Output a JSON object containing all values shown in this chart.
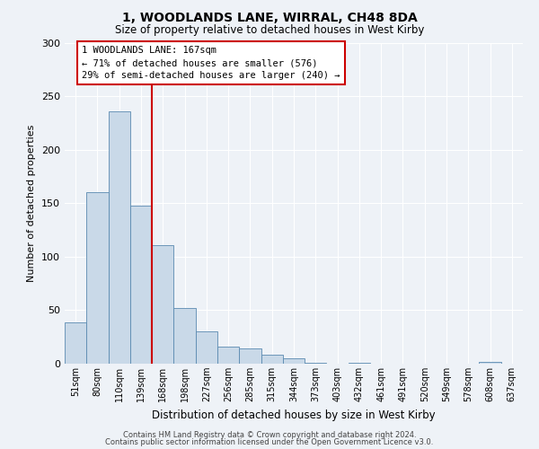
{
  "title": "1, WOODLANDS LANE, WIRRAL, CH48 8DA",
  "subtitle": "Size of property relative to detached houses in West Kirby",
  "xlabel": "Distribution of detached houses by size in West Kirby",
  "ylabel": "Number of detached properties",
  "bar_labels": [
    "51sqm",
    "80sqm",
    "110sqm",
    "139sqm",
    "168sqm",
    "198sqm",
    "227sqm",
    "256sqm",
    "285sqm",
    "315sqm",
    "344sqm",
    "373sqm",
    "403sqm",
    "432sqm",
    "461sqm",
    "491sqm",
    "520sqm",
    "549sqm",
    "578sqm",
    "608sqm",
    "637sqm"
  ],
  "bar_values": [
    39,
    160,
    236,
    148,
    111,
    52,
    30,
    16,
    14,
    8,
    5,
    1,
    0,
    1,
    0,
    0,
    0,
    0,
    0,
    2,
    0
  ],
  "bar_color": "#c9d9e8",
  "bar_edge_color": "#5a8ab0",
  "ylim": [
    0,
    300
  ],
  "yticks": [
    0,
    50,
    100,
    150,
    200,
    250,
    300
  ],
  "property_line_index": 4,
  "property_line_color": "#cc0000",
  "annotation_title": "1 WOODLANDS LANE: 167sqm",
  "annotation_line1": "← 71% of detached houses are smaller (576)",
  "annotation_line2": "29% of semi-detached houses are larger (240) →",
  "annotation_box_color": "#ffffff",
  "annotation_box_edge": "#cc0000",
  "background_color": "#eef2f7",
  "grid_color": "#ffffff",
  "footer1": "Contains HM Land Registry data © Crown copyright and database right 2024.",
  "footer2": "Contains public sector information licensed under the Open Government Licence v3.0."
}
